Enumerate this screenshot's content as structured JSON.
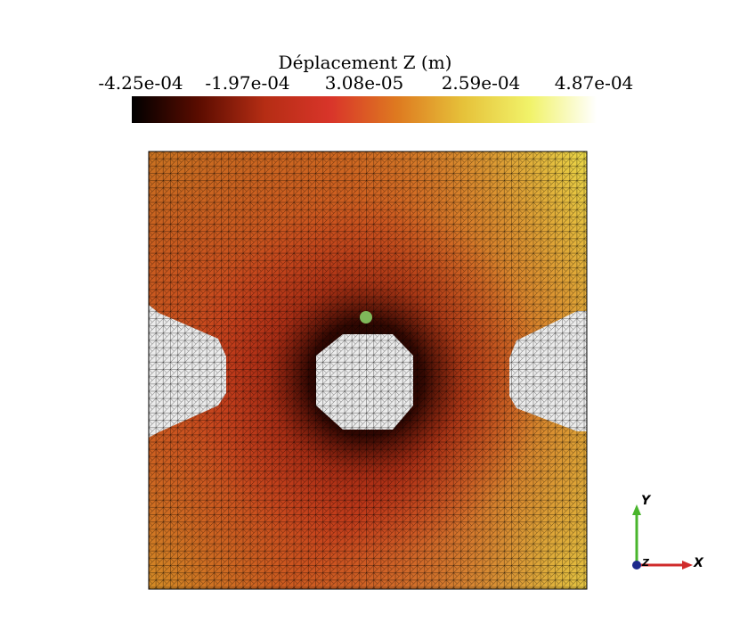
{
  "legend": {
    "title": "Déplacement Z (m)",
    "ticks": [
      "-4.25e-04",
      "-1.97e-04",
      "3.08e-05",
      "2.59e-04",
      "4.87e-04"
    ],
    "colormap": [
      "#000000",
      "#5a0c00",
      "#b52d14",
      "#d9352a",
      "#de7a20",
      "#e6c23a",
      "#f1f36a",
      "#ffffff"
    ]
  },
  "orientation_axes": {
    "y_label": "Y",
    "x_label": "X",
    "z_label": "Z",
    "y_color": "#49b52c",
    "x_color": "#d02c2c",
    "z_color": "#1d2a8c"
  },
  "mesh": {
    "background_colors": [
      "#1a0300",
      "#c42f1a",
      "#cf6f1f",
      "#e1b331",
      "#eaea55"
    ],
    "hole_color": "#ececec",
    "probe_color": "#7fb85a"
  }
}
